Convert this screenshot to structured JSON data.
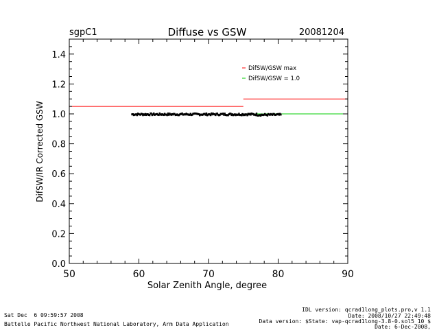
{
  "chart_data": {
    "type": "scatter",
    "station": "sgpC1",
    "title": "Diffuse vs GSW",
    "date": "20081204",
    "xlabel": "Solar Zenith Angle, degree",
    "ylabel": "DifSW/IR Corrected GSW",
    "xlim": [
      50,
      90
    ],
    "ylim": [
      0.0,
      1.5
    ],
    "xticks": [
      "50",
      "60",
      "70",
      "80",
      "90"
    ],
    "yticks": [
      "0.0",
      "0.2",
      "0.4",
      "0.6",
      "0.8",
      "1.0",
      "1.2",
      "1.4"
    ],
    "grid": false,
    "legend_position": "top-right",
    "series": [
      {
        "name": "DifSW/GSW max",
        "kind": "step-line",
        "color": "#ff0000",
        "segments": [
          {
            "x": [
              50,
              75
            ],
            "y": [
              1.05,
              1.05
            ]
          },
          {
            "x": [
              75,
              90
            ],
            "y": [
              1.1,
              1.1
            ]
          }
        ]
      },
      {
        "name": "DifSW/GSW = 1.0",
        "kind": "line",
        "color": "#00cc00",
        "segments": [
          {
            "x": [
              75,
              90
            ],
            "y": [
              1.0,
              1.0
            ]
          }
        ]
      },
      {
        "name": "",
        "kind": "points",
        "color": "#000000",
        "x_range": [
          59,
          80.4
        ],
        "y_center": 0.997,
        "y_spread": 0.006
      }
    ]
  },
  "footer": {
    "left_line1": "Sat Dec  6 09:59:57 2008",
    "left_line2": "Battelle Pacific Northwest National Laboratory, Arm Data Application",
    "right_line1": "IDL version: qcrad1long_plots.pro,v 1.1",
    "right_line2": "Date: 2008/10/27 22:49:48",
    "right_line3": "Data version: $State: vap-qcrad1long-3.8-0.sol5_10 $",
    "right_line4": "Date: 6-Dec-2008,"
  }
}
